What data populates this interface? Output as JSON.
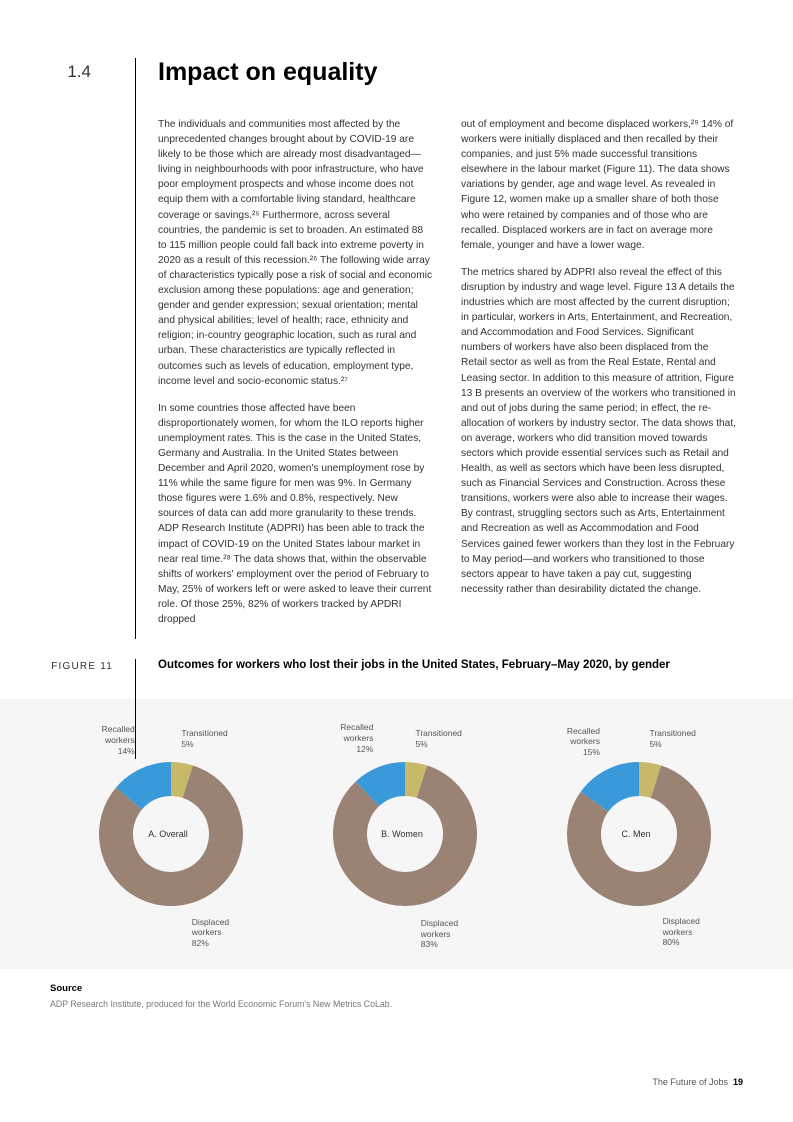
{
  "header": {
    "section_number": "1.4",
    "title": "Impact on equality"
  },
  "body": {
    "col1_p1": "The individuals and communities most affected by the unprecedented changes brought about by COVID-19 are likely to be those which are already most disadvantaged—living in neighbourhoods with poor infrastructure, who have poor employment prospects and whose income does not equip them with a comfortable living standard, healthcare coverage or savings.²⁵ Furthermore, across several countries, the pandemic is set to broaden. An estimated 88 to 115 million people could fall back into extreme poverty in 2020 as a result of this recession.²⁶ The following wide array of characteristics typically pose a risk of social and economic exclusion among these populations: age and generation; gender and gender expression; sexual orientation; mental and physical abilities; level of health; race, ethnicity and religion; in-country geographic location, such as rural and urban. These characteristics are typically reflected in outcomes such as levels of education, employment type, income level and socio-economic status.²⁷",
    "col1_p2": "In some countries those affected have been disproportionately women, for whom the ILO reports higher unemployment rates. This is the case in the United States, Germany and Australia. In the United States between December and April 2020, women's unemployment rose by 11% while the same figure for men was 9%. In Germany those figures were 1.6% and 0.8%, respectively. New sources of data can add more granularity to these trends. ADP Research Institute (ADPRI) has been able to track the impact of COVID-19 on the United States labour market in near real time.²⁸ The data shows that, within the observable shifts of workers' employment over the period of February to May, 25% of workers left or were asked to leave their current role. Of those 25%, 82% of workers tracked by APDRI dropped",
    "col2_p1": "out of employment and become displaced workers,²⁹ 14% of workers were initially displaced and then recalled by their companies, and just 5% made successful transitions elsewhere in the labour market (Figure 11). The data shows variations by gender, age and wage level. As revealed in Figure 12, women make up a smaller share of both those who were retained by companies and of those who are recalled. Displaced workers are in fact on average more female, younger and have a lower wage.",
    "col2_p2": "The metrics shared by ADPRI also reveal the effect of this disruption by industry and wage level. Figure 13 A details the industries which are most affected by the current disruption; in particular, workers in Arts, Entertainment, and Recreation, and Accommodation and Food Services. Significant numbers of workers have also been displaced from the Retail sector as well as from the Real Estate, Rental and Leasing sector. In addition to this measure of attrition, Figure 13 B presents an overview of the workers who transitioned in and out of jobs during the same period; in effect, the re-allocation of workers by industry sector. The data shows that, on average, workers who did transition moved towards sectors which provide essential services such as Retail and Health, as well as sectors which have been less disrupted, such as Financial Services and Construction. Across these transitions, workers were also able to increase their wages. By contrast, struggling sectors such as Arts, Entertainment and Recreation as well as Accommodation and Food Services gained fewer workers than they lost in the February to May period—and workers who transitioned to those sectors appear to have taken a pay cut, suggesting necessity rather than desirability dictated the change."
  },
  "figure": {
    "label": "FIGURE 11",
    "title": "Outcomes for workers who lost their jobs in the United States, February–May 2020,  by gender",
    "type": "donut",
    "colors": {
      "recalled": "#3a99d8",
      "transitioned": "#c8b96a",
      "displaced": "#9a8274",
      "background": "#f6f6f6",
      "inner": "#ffffff"
    },
    "inner_radius": 38,
    "outer_radius": 72,
    "charts": [
      {
        "center_label": "A. Overall",
        "segments": [
          {
            "label": "Recalled workers",
            "value": 14,
            "key": "recalled"
          },
          {
            "label": "Transitioned",
            "value": 5,
            "key": "transitioned"
          },
          {
            "label": "Displaced workers",
            "value": 82,
            "key": "displaced"
          }
        ]
      },
      {
        "center_label": "B. Women",
        "segments": [
          {
            "label": "Recalled workers",
            "value": 12,
            "key": "recalled"
          },
          {
            "label": "Transitioned",
            "value": 5,
            "key": "transitioned"
          },
          {
            "label": "Displaced workers",
            "value": 83,
            "key": "displaced"
          }
        ]
      },
      {
        "center_label": "C. Men",
        "segments": [
          {
            "label": "Recalled workers",
            "value": 15,
            "key": "recalled"
          },
          {
            "label": "Transitioned",
            "value": 5,
            "key": "transitioned"
          },
          {
            "label": "Displaced workers",
            "value": 80,
            "key": "displaced"
          }
        ]
      }
    ]
  },
  "source": {
    "title": "Source",
    "text": "ADP Research Institute, produced for the World Economic Forum's New Metrics CoLab."
  },
  "footer": {
    "doc_title": "The Future of Jobs",
    "page": "19"
  }
}
